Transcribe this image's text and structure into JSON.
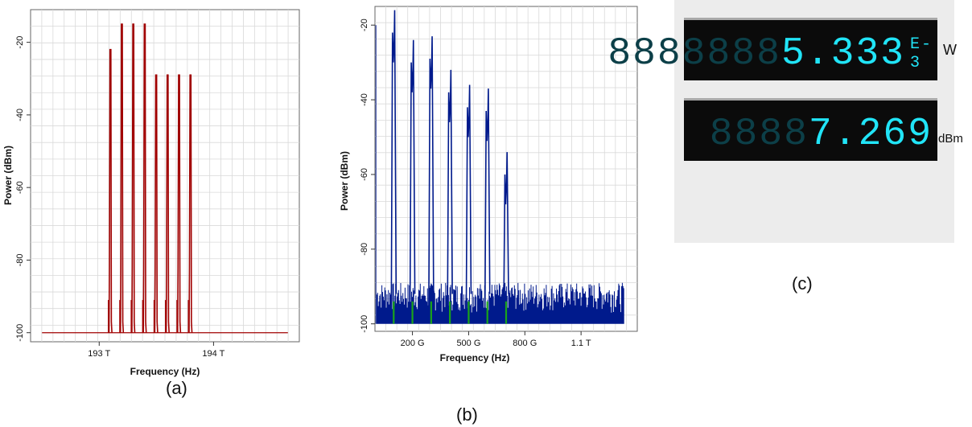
{
  "chart_data": [
    {
      "type": "line",
      "panel": "(a)",
      "xlabel": "Frequency (Hz)",
      "ylabel": "Power (dBm)",
      "xlim": [
        192.4,
        194.75
      ],
      "ylim": [
        -102.5,
        -11
      ],
      "xticks": [
        {
          "v": 193.0,
          "label": "193 T"
        },
        {
          "v": 194.0,
          "label": "194 T"
        }
      ],
      "yticks": [
        {
          "v": -20,
          "label": "-20"
        },
        {
          "v": -40,
          "label": "-40"
        },
        {
          "v": -60,
          "label": "-60"
        },
        {
          "v": -80,
          "label": "-80"
        },
        {
          "v": -100,
          "label": "-100"
        }
      ],
      "color": "#a00000",
      "baseline": -100,
      "peaks": [
        {
          "x": 193.1,
          "y": -22
        },
        {
          "x": 193.2,
          "y": -15
        },
        {
          "x": 193.3,
          "y": -15
        },
        {
          "x": 193.4,
          "y": -15
        },
        {
          "x": 193.5,
          "y": -29
        },
        {
          "x": 193.6,
          "y": -29
        },
        {
          "x": 193.7,
          "y": -29
        },
        {
          "x": 193.8,
          "y": -29
        }
      ],
      "grid": true
    },
    {
      "type": "line",
      "panel": "(b)",
      "xlabel": "Frequency (Hz)",
      "ylabel": "Power (dBm)",
      "xlim": [
        0,
        1.4
      ],
      "ylim": [
        -102,
        -15
      ],
      "xticks": [
        {
          "v": 0.2,
          "label": "200 G"
        },
        {
          "v": 0.5,
          "label": "500 G"
        },
        {
          "v": 0.8,
          "label": "800 G"
        },
        {
          "v": 1.1,
          "label": "1.1 T"
        }
      ],
      "yticks": [
        {
          "v": -20,
          "label": "-20"
        },
        {
          "v": -40,
          "label": "-40"
        },
        {
          "v": -60,
          "label": "-60"
        },
        {
          "v": -80,
          "label": "-80"
        },
        {
          "v": -100,
          "label": "-100"
        }
      ],
      "color": "#001a8c",
      "marker_color": "#1aa31a",
      "noise_floor": [
        -97,
        -89
      ],
      "peaks": [
        {
          "x": 0.1,
          "y": -30
        },
        {
          "x": 0.2,
          "y": -38
        },
        {
          "x": 0.3,
          "y": -37
        },
        {
          "x": 0.4,
          "y": -46
        },
        {
          "x": 0.5,
          "y": -50
        },
        {
          "x": 0.6,
          "y": -51
        },
        {
          "x": 0.7,
          "y": -68
        }
      ],
      "grid": true
    }
  ],
  "captions": {
    "a": "(a)",
    "b": "(b)",
    "c": "(c)"
  },
  "meter": {
    "watts_value": "5.333",
    "watts_exponent": "E-3",
    "watts_unit": "W",
    "dbm_value": "7.269",
    "dbm_unit": "dBm",
    "ghost_digits_watts": "8888888",
    "ghost_digits_dbm": "8888",
    "digit_color": "#21e4f7",
    "ghost_color": "#0c3f48"
  }
}
